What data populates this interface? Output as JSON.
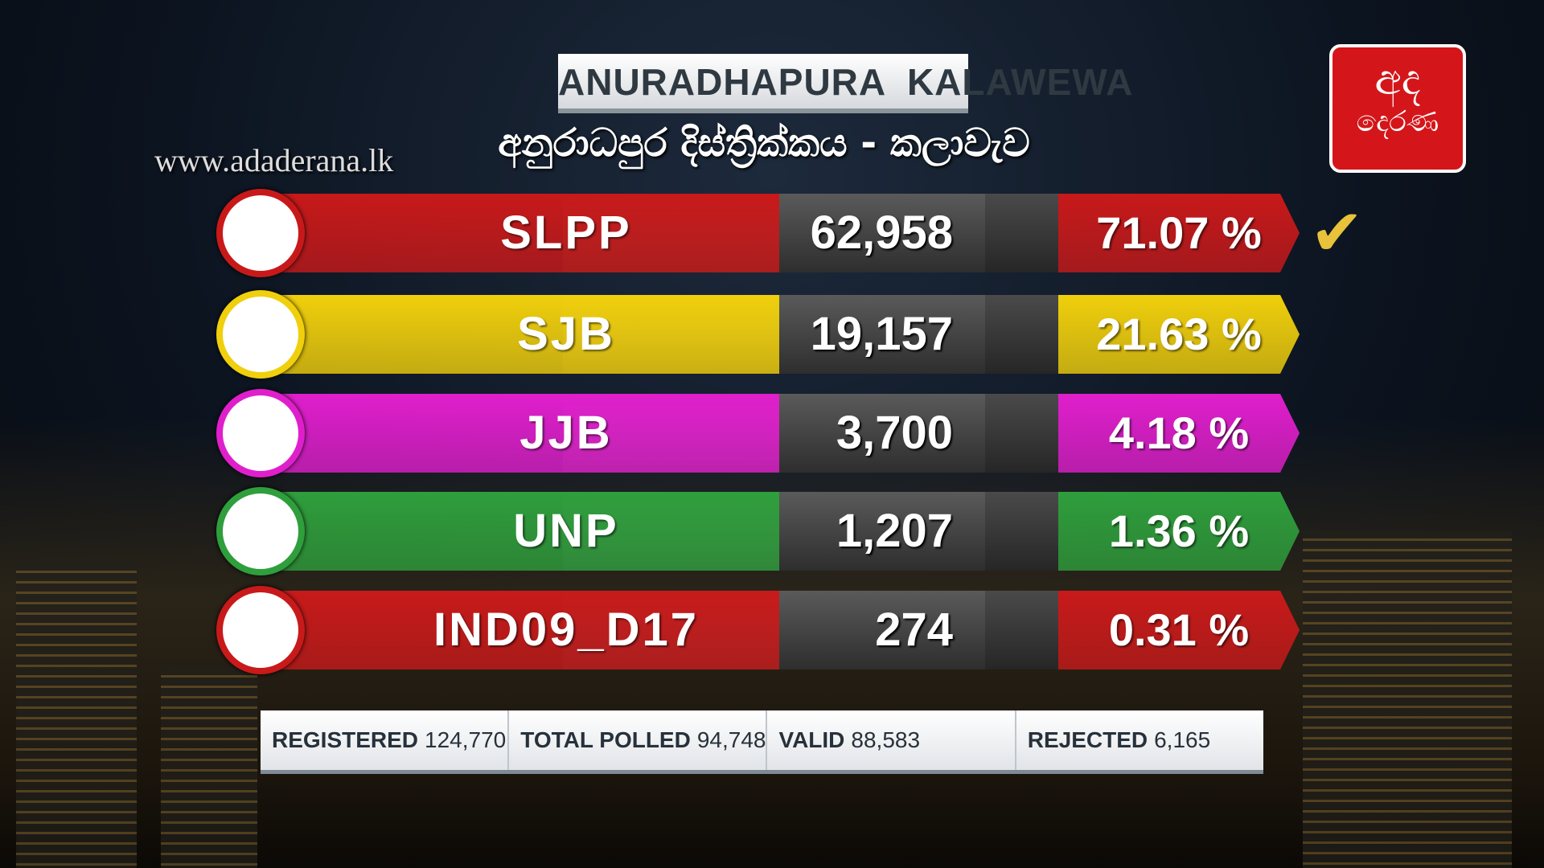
{
  "header": {
    "title": "ANURADHAPURA  KALAWEWA",
    "subtitle": "අනුරාධපුර දිස්ත්‍රික්කය - කලාවැව",
    "website": "www.adaderana.lk",
    "logo": {
      "top": "අද",
      "bottom": "දෙරණ"
    }
  },
  "results": [
    {
      "party": "SLPP",
      "votes": "62,958",
      "percent": "71.07 %",
      "color": "#c8191a",
      "winner": true
    },
    {
      "party": "SJB",
      "votes": "19,157",
      "percent": "21.63 %",
      "color": "#f0cf0c",
      "winner": false
    },
    {
      "party": "JJB",
      "votes": "3,700",
      "percent": "4.18 %",
      "color": "#e01fcc",
      "winner": false
    },
    {
      "party": "UNP",
      "votes": "1,207",
      "percent": "1.36 %",
      "color": "#2f9e3c",
      "winner": false
    },
    {
      "party": "IND09_D17",
      "votes": "274",
      "percent": "0.31 %",
      "color": "#c81a1a",
      "winner": false
    }
  ],
  "summary": [
    {
      "label": "REGISTERED",
      "value": "124,770"
    },
    {
      "label": "TOTAL POLLED",
      "value": "94,748"
    },
    {
      "label": "VALID",
      "value": "88,583"
    },
    {
      "label": "REJECTED",
      "value": "6,165"
    }
  ]
}
